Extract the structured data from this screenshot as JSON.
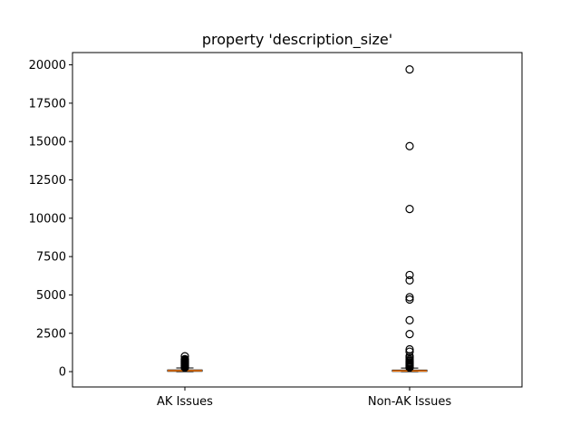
{
  "chart_data": {
    "type": "box",
    "title": "property 'description_size'",
    "xlabel": "",
    "ylabel": "",
    "categories": [
      "AK Issues",
      "Non-AK Issues"
    ],
    "ylim": [
      -1000,
      20800
    ],
    "yticks": [
      0,
      2500,
      5000,
      7500,
      10000,
      12500,
      15000,
      17500,
      20000
    ],
    "ytick_labels": [
      "0",
      "2500",
      "5000",
      "7500",
      "10000",
      "12500",
      "15000",
      "17500",
      "20000"
    ],
    "grid": false,
    "series": [
      {
        "category": "AK Issues",
        "whisker_low": 0,
        "q1": 20,
        "median": 60,
        "q3": 110,
        "whisker_high": 240,
        "outliers": [
          260,
          300,
          340,
          380,
          420,
          460,
          500,
          540,
          580,
          620,
          660,
          700,
          740,
          780,
          820,
          1000
        ]
      },
      {
        "category": "Non-AK Issues",
        "whisker_low": 0,
        "q1": 15,
        "median": 50,
        "q3": 100,
        "whisker_high": 230,
        "outliers": [
          260,
          300,
          350,
          400,
          450,
          500,
          560,
          620,
          700,
          780,
          900,
          1000,
          1300,
          1450,
          2450,
          3350,
          4700,
          4850,
          5950,
          6300,
          10600,
          14700,
          19700
        ]
      }
    ],
    "colors": {
      "box": "#000000",
      "median": "#ff7f0e",
      "outlier": "#000000"
    }
  }
}
